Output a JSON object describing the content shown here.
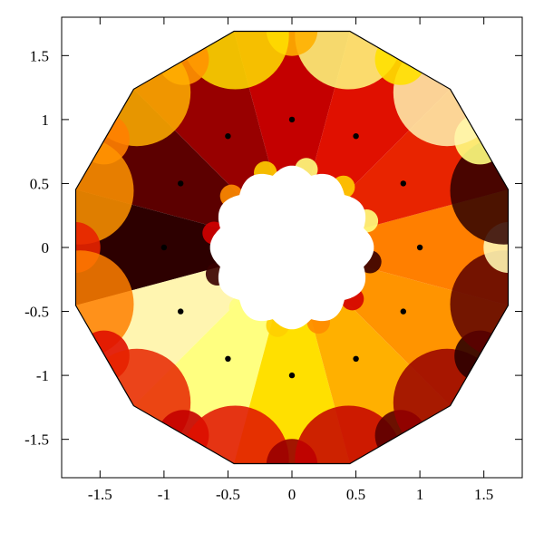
{
  "chart_data": {
    "type": "scatter",
    "title": "",
    "xlabel": "",
    "ylabel": "",
    "xlim": [
      -1.8,
      1.8
    ],
    "ylim": [
      -1.8,
      1.8
    ],
    "grid": false,
    "x_ticks": [
      {
        "value": -1.5,
        "label": "-1.5"
      },
      {
        "value": -1,
        "label": "-1"
      },
      {
        "value": -0.5,
        "label": "-0.5"
      },
      {
        "value": 0,
        "label": "0"
      },
      {
        "value": 0.5,
        "label": "0.5"
      },
      {
        "value": 1,
        "label": "1"
      },
      {
        "value": 1.5,
        "label": "1.5"
      }
    ],
    "y_ticks": [
      {
        "value": 1.5,
        "label": "1.5"
      },
      {
        "value": 1,
        "label": "1"
      },
      {
        "value": 0.5,
        "label": "0.5"
      },
      {
        "value": 0,
        "label": "0"
      },
      {
        "value": -0.5,
        "label": "-0.5"
      },
      {
        "value": -1,
        "label": "-1"
      },
      {
        "value": -1.5,
        "label": "-1.5"
      }
    ],
    "points": [
      {
        "x": 0,
        "y": 1.0
      },
      {
        "x": 0.5,
        "y": 0.87
      },
      {
        "x": 0.87,
        "y": 0.5
      },
      {
        "x": 1.0,
        "y": 0
      },
      {
        "x": 0.87,
        "y": -0.5
      },
      {
        "x": 0.5,
        "y": -0.87
      },
      {
        "x": 0,
        "y": -1.0
      },
      {
        "x": -0.5,
        "y": -0.87
      },
      {
        "x": -0.87,
        "y": -0.5
      },
      {
        "x": -1.0,
        "y": 0
      },
      {
        "x": -0.87,
        "y": 0.5
      },
      {
        "x": -0.5,
        "y": 0.87
      }
    ],
    "region": {
      "sectors": 12,
      "inner_radius": 0.58,
      "outer_radius": 1.75,
      "sector_colors": [
        "#c40000",
        "#980000",
        "#5c0000",
        "#2d0000",
        "#fff5b0",
        "#ffff80",
        "#ffe000",
        "#ffb000",
        "#ff9400",
        "#ff7f00",
        "#e82400",
        "#e01000"
      ],
      "accent_colors": [
        "#ffff80",
        "#ffcf00",
        "#ff8c00",
        "#d40000",
        "#380000"
      ]
    }
  }
}
